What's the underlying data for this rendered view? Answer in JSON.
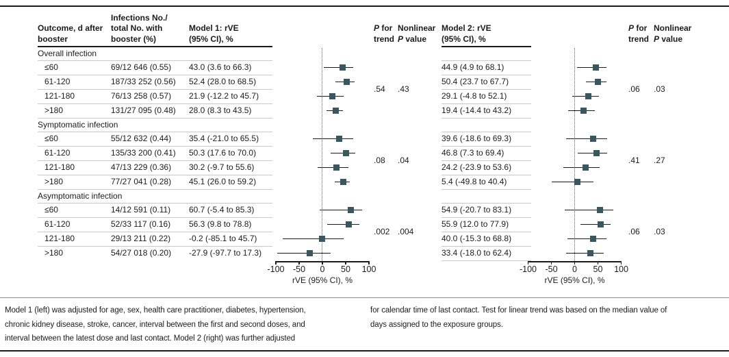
{
  "header": {
    "outcome": "Outcome, d after\nbooster",
    "infections": "Infections No./\ntotal No. with\nbooster (%)",
    "model1": "Model 1: rVE\n(95% CI), %",
    "model2": "Model 2: rVE\n(95% CI), %",
    "p_for": {
      "pre": "",
      "italic": "P",
      "post": " for\ntrend"
    },
    "nonlinear": {
      "pre": "Nonlinear\n",
      "italic": "P",
      "post": " value"
    }
  },
  "axis": {
    "ticks": [
      -100,
      -50,
      0,
      50,
      100
    ],
    "label": "rVE (95% CI), %",
    "xlim": [
      -100,
      100
    ]
  },
  "colors": {
    "marker": "#395761",
    "ci_line": "#1a1a1a",
    "separator": "#c9c8c2",
    "rule": "#1a1a1a"
  },
  "sections": [
    {
      "label": "Overall infection",
      "model1_p_trend": ".54",
      "model1_p_nonlinear": ".43",
      "model2_p_trend": ".06",
      "model2_p_nonlinear": ".03",
      "rows": [
        {
          "outcome": "≤60",
          "infections": "69/12 646 (0.55)",
          "model1_text": "43.0 (3.6 to 66.3)",
          "model1": {
            "est": 43.0,
            "lo": 3.6,
            "hi": 66.3
          },
          "model2_text": "44.9 (4.9 to 68.1)",
          "model2": {
            "est": 44.9,
            "lo": 4.9,
            "hi": 68.1
          }
        },
        {
          "outcome": "61-120",
          "infections": "187/33 252 (0.56)",
          "model1_text": "52.4 (28.0 to 68.5)",
          "model1": {
            "est": 52.4,
            "lo": 28.0,
            "hi": 68.5
          },
          "model2_text": "50.4 (23.7 to 67.7)",
          "model2": {
            "est": 50.4,
            "lo": 23.7,
            "hi": 67.7
          }
        },
        {
          "outcome": "121-180",
          "infections": "76/13 258 (0.57)",
          "model1_text": "21.9 (-12.2 to 45.7)",
          "model1": {
            "est": 21.9,
            "lo": -12.2,
            "hi": 45.7
          },
          "model2_text": "29.1 (-4.8 to 52.1)",
          "model2": {
            "est": 29.1,
            "lo": -4.8,
            "hi": 52.1
          }
        },
        {
          "outcome": ">180",
          "infections": "131/27 095 (0.48)",
          "model1_text": "28.0 (8.3 to 43.5)",
          "model1": {
            "est": 28.0,
            "lo": 8.3,
            "hi": 43.5
          },
          "model2_text": "19.4 (-14.4 to 43.2)",
          "model2": {
            "est": 19.4,
            "lo": -14.4,
            "hi": 43.2
          }
        }
      ]
    },
    {
      "label": "Symptomatic infection",
      "model1_p_trend": ".08",
      "model1_p_nonlinear": ".04",
      "model2_p_trend": ".41",
      "model2_p_nonlinear": ".27",
      "rows": [
        {
          "outcome": "≤60",
          "infections": "55/12 632 (0.44)",
          "model1_text": "35.4 (-21.0 to 65.5)",
          "model1": {
            "est": 35.4,
            "lo": -21.0,
            "hi": 65.5
          },
          "model2_text": "39.6 (-18.6 to 69.3)",
          "model2": {
            "est": 39.6,
            "lo": -18.6,
            "hi": 69.3
          }
        },
        {
          "outcome": "61-120",
          "infections": "135/33 200 (0.41)",
          "model1_text": "50.3 (17.6 to 70.0)",
          "model1": {
            "est": 50.3,
            "lo": 17.6,
            "hi": 70.0
          },
          "model2_text": "46.8 (7.3 to 69.4)",
          "model2": {
            "est": 46.8,
            "lo": 7.3,
            "hi": 69.4
          }
        },
        {
          "outcome": "121-180",
          "infections": "47/13 229 (0.36)",
          "model1_text": "30.2 (-9.7 to 55.6)",
          "model1": {
            "est": 30.2,
            "lo": -9.7,
            "hi": 55.6
          },
          "model2_text": "24.2 (-23.9 to 53.6)",
          "model2": {
            "est": 24.2,
            "lo": -23.9,
            "hi": 53.6
          }
        },
        {
          "outcome": ">180",
          "infections": "77/27 041 (0.28)",
          "model1_text": "45.1 (26.0 to 59.2)",
          "model1": {
            "est": 45.1,
            "lo": 26.0,
            "hi": 59.2
          },
          "model2_text": "5.4 (-49.8 to 40.4)",
          "model2": {
            "est": 5.4,
            "lo": -49.8,
            "hi": 40.4
          }
        }
      ]
    },
    {
      "label": "Asymptomatic infection",
      "model1_p_trend": ".002",
      "model1_p_nonlinear": ".004",
      "model2_p_trend": ".06",
      "model2_p_nonlinear": ".03",
      "rows": [
        {
          "outcome": "≤60",
          "infections": "14/12 591 (0.11)",
          "model1_text": "60.7 (-5.4 to 85.3)",
          "model1": {
            "est": 60.7,
            "lo": -5.4,
            "hi": 85.3
          },
          "model2_text": "54.9 (-20.7 to 83.1)",
          "model2": {
            "est": 54.9,
            "lo": -20.7,
            "hi": 83.1
          }
        },
        {
          "outcome": "61-120",
          "infections": "52/33 117 (0.16)",
          "model1_text": "56.3 (9.8 to 78.8)",
          "model1": {
            "est": 56.3,
            "lo": 9.8,
            "hi": 78.8
          },
          "model2_text": "55.9 (12.0 to 77.9)",
          "model2": {
            "est": 55.9,
            "lo": 12.0,
            "hi": 77.9
          }
        },
        {
          "outcome": "121-180",
          "infections": "29/13 211 (0.22)",
          "model1_text": "-0.2 (-85.1 to 45.7)",
          "model1": {
            "est": -0.2,
            "lo": -85.1,
            "hi": 45.7
          },
          "model2_text": "40.0 (-15.3 to 68.8)",
          "model2": {
            "est": 40.0,
            "lo": -15.3,
            "hi": 68.8
          }
        },
        {
          "outcome": ">180",
          "infections": "54/27 018 (0.20)",
          "model1_text": "-27.9 (-97.7 to 17.3)",
          "model1": {
            "est": -27.9,
            "lo": -97.7,
            "hi": 17.3
          },
          "model2_text": "33.4 (-18.0 to 62.4)",
          "model2": {
            "est": 33.4,
            "lo": -18.0,
            "hi": 62.4
          }
        }
      ]
    }
  ],
  "footnotes": {
    "left": "Model 1 (left) was adjusted for age, sex, health care practitioner, diabetes, hypertension,\nchronic kidney disease, stroke, cancer, interval between the first and second doses, and\ninterval between the latest dose and last contact. Model 2 (right) was further adjusted",
    "right": "for calendar time of last contact. Test for linear trend was based on the median value of\ndays assigned to the exposure groups."
  },
  "chart_data": [
    {
      "type": "scatter",
      "subtype": "forest",
      "title": "Model 1: rVE (95% CI), %",
      "xlabel": "rVE (95% CI), %",
      "xlim": [
        -100,
        100
      ],
      "xticks": [
        -100,
        -50,
        0,
        50,
        100
      ],
      "reference_line": 0,
      "groups": [
        {
          "name": "Overall infection",
          "p_for_trend": ".54",
          "nonlinear_p": ".43",
          "points": [
            {
              "label": "≤60",
              "est": 43.0,
              "lo": 3.6,
              "hi": 66.3
            },
            {
              "label": "61-120",
              "est": 52.4,
              "lo": 28.0,
              "hi": 68.5
            },
            {
              "label": "121-180",
              "est": 21.9,
              "lo": -12.2,
              "hi": 45.7
            },
            {
              "label": ">180",
              "est": 28.0,
              "lo": 8.3,
              "hi": 43.5
            }
          ]
        },
        {
          "name": "Symptomatic infection",
          "p_for_trend": ".08",
          "nonlinear_p": ".04",
          "points": [
            {
              "label": "≤60",
              "est": 35.4,
              "lo": -21.0,
              "hi": 65.5
            },
            {
              "label": "61-120",
              "est": 50.3,
              "lo": 17.6,
              "hi": 70.0
            },
            {
              "label": "121-180",
              "est": 30.2,
              "lo": -9.7,
              "hi": 55.6
            },
            {
              "label": ">180",
              "est": 45.1,
              "lo": 26.0,
              "hi": 59.2
            }
          ]
        },
        {
          "name": "Asymptomatic infection",
          "p_for_trend": ".002",
          "nonlinear_p": ".004",
          "points": [
            {
              "label": "≤60",
              "est": 60.7,
              "lo": -5.4,
              "hi": 85.3
            },
            {
              "label": "61-120",
              "est": 56.3,
              "lo": 9.8,
              "hi": 78.8
            },
            {
              "label": "121-180",
              "est": -0.2,
              "lo": -85.1,
              "hi": 45.7
            },
            {
              "label": ">180",
              "est": -27.9,
              "lo": -97.7,
              "hi": 17.3
            }
          ]
        }
      ]
    },
    {
      "type": "scatter",
      "subtype": "forest",
      "title": "Model 2: rVE (95% CI), %",
      "xlabel": "rVE (95% CI), %",
      "xlim": [
        -100,
        100
      ],
      "xticks": [
        -100,
        -50,
        0,
        50,
        100
      ],
      "reference_line": 0,
      "groups": [
        {
          "name": "Overall infection",
          "p_for_trend": ".06",
          "nonlinear_p": ".03",
          "points": [
            {
              "label": "≤60",
              "est": 44.9,
              "lo": 4.9,
              "hi": 68.1
            },
            {
              "label": "61-120",
              "est": 50.4,
              "lo": 23.7,
              "hi": 67.7
            },
            {
              "label": "121-180",
              "est": 29.1,
              "lo": -4.8,
              "hi": 52.1
            },
            {
              "label": ">180",
              "est": 19.4,
              "lo": -14.4,
              "hi": 43.2
            }
          ]
        },
        {
          "name": "Symptomatic infection",
          "p_for_trend": ".41",
          "nonlinear_p": ".27",
          "points": [
            {
              "label": "≤60",
              "est": 39.6,
              "lo": -18.6,
              "hi": 69.3
            },
            {
              "label": "61-120",
              "est": 46.8,
              "lo": 7.3,
              "hi": 69.4
            },
            {
              "label": "121-180",
              "est": 24.2,
              "lo": -23.9,
              "hi": 53.6
            },
            {
              "label": ">180",
              "est": 5.4,
              "lo": -49.8,
              "hi": 40.4
            }
          ]
        },
        {
          "name": "Asymptomatic infection",
          "p_for_trend": ".06",
          "nonlinear_p": ".03",
          "points": [
            {
              "label": "≤60",
              "est": 54.9,
              "lo": -20.7,
              "hi": 83.1
            },
            {
              "label": "61-120",
              "est": 55.9,
              "lo": 12.0,
              "hi": 77.9
            },
            {
              "label": "121-180",
              "est": 40.0,
              "lo": -15.3,
              "hi": 68.8
            },
            {
              "label": ">180",
              "est": 33.4,
              "lo": -18.0,
              "hi": 62.4
            }
          ]
        }
      ]
    }
  ]
}
